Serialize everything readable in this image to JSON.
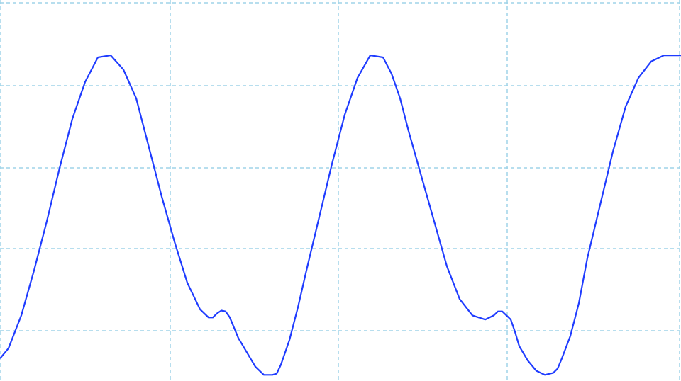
{
  "chart_data": {
    "type": "line",
    "title": "",
    "xlabel": "",
    "ylabel": "",
    "grid": true,
    "xlim": [
      0,
      8
    ],
    "ylim": [
      0,
      9.3
    ],
    "series": [
      {
        "color": "#1f3cff",
        "x": [
          0.0,
          0.1,
          0.25,
          0.4,
          0.55,
          0.7,
          0.85,
          1.0,
          1.15,
          1.3,
          1.45,
          1.6,
          1.75,
          1.9,
          2.05,
          2.2,
          2.35,
          2.45,
          2.5,
          2.55,
          2.6,
          2.65,
          2.7,
          2.8,
          2.9,
          3.0,
          3.1,
          3.2,
          3.25,
          3.3,
          3.4,
          3.5,
          3.6,
          3.75,
          3.9,
          4.05,
          4.2,
          4.35,
          4.5,
          4.6,
          4.7,
          4.8,
          4.95,
          5.1,
          5.25,
          5.4,
          5.55,
          5.7,
          5.8,
          5.85,
          5.9,
          5.95,
          6.0,
          6.05,
          6.1,
          6.2,
          6.3,
          6.4,
          6.5,
          6.55,
          6.6,
          6.7,
          6.8,
          6.9,
          7.05,
          7.2,
          7.35,
          7.5,
          7.65,
          7.8,
          7.9,
          8.0
        ],
        "y": [
          0.55,
          0.8,
          1.6,
          2.7,
          3.9,
          5.2,
          6.4,
          7.3,
          7.9,
          7.95,
          7.6,
          6.9,
          5.7,
          4.5,
          3.4,
          2.4,
          1.75,
          1.55,
          1.55,
          1.65,
          1.72,
          1.7,
          1.55,
          1.05,
          0.7,
          0.35,
          0.15,
          0.15,
          0.18,
          0.4,
          1.0,
          1.8,
          2.7,
          4.0,
          5.3,
          6.5,
          7.4,
          7.95,
          7.9,
          7.5,
          6.9,
          6.1,
          5.0,
          3.9,
          2.8,
          2.0,
          1.6,
          1.5,
          1.6,
          1.7,
          1.7,
          1.6,
          1.5,
          1.2,
          0.85,
          0.5,
          0.25,
          0.15,
          0.2,
          0.3,
          0.55,
          1.1,
          1.9,
          3.0,
          4.3,
          5.6,
          6.7,
          7.4,
          7.8,
          7.95,
          7.95,
          7.95
        ]
      }
    ]
  },
  "colors": {
    "background": "#ffffff",
    "grid": "#9fd3e8",
    "trace": "#1f3cff"
  }
}
